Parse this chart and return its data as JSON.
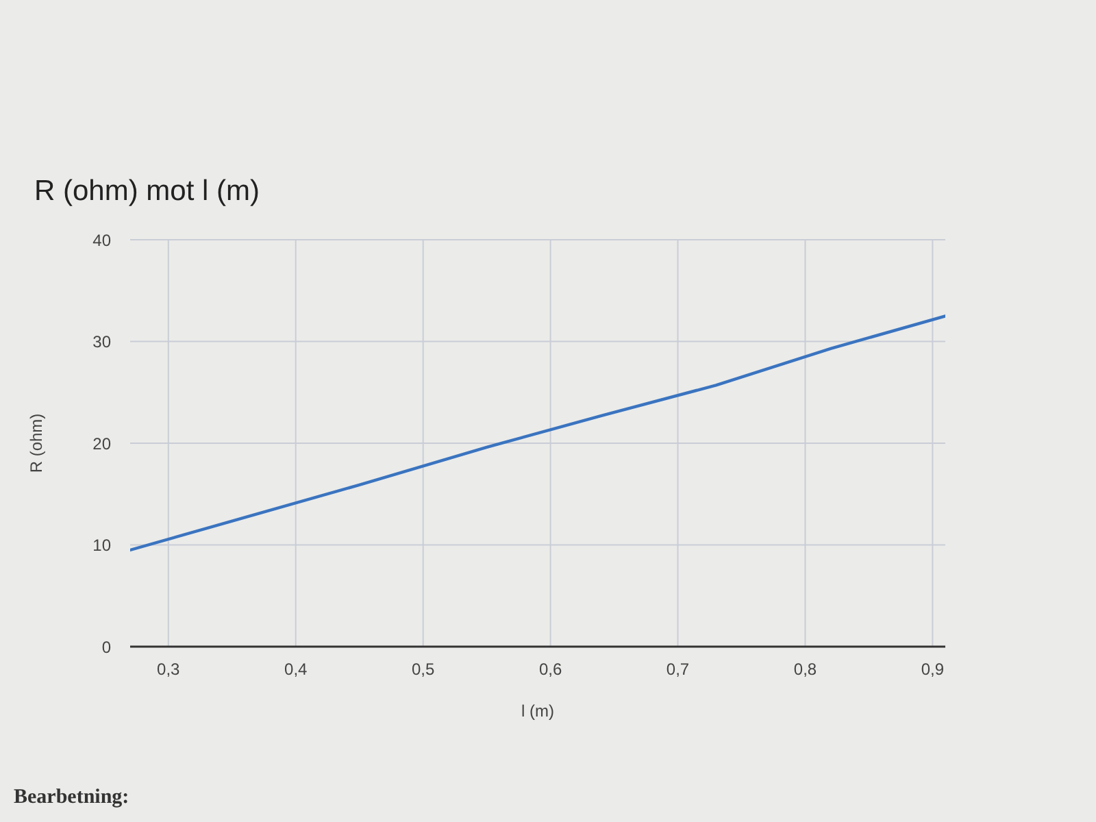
{
  "chart_data": {
    "type": "line",
    "title": "R (ohm) mot l (m)",
    "xlabel": "l (m)",
    "ylabel": "R (ohm)",
    "x": [
      0.27,
      0.36,
      0.45,
      0.55,
      0.64,
      0.73,
      0.82,
      0.91
    ],
    "series": [
      {
        "color": "#3a74c0",
        "values": [
          9.5,
          12.7,
          15.9,
          19.6,
          22.7,
          25.7,
          29.3,
          32.5
        ]
      }
    ],
    "xlim": [
      0.27,
      0.91
    ],
    "xticks": [
      {
        "value": 0.3,
        "label": "0,3"
      },
      {
        "value": 0.4,
        "label": "0,4"
      },
      {
        "value": 0.5,
        "label": "0,5"
      },
      {
        "value": 0.6,
        "label": "0,6"
      },
      {
        "value": 0.7,
        "label": "0,7"
      },
      {
        "value": 0.8,
        "label": "0,8"
      },
      {
        "value": 0.9,
        "label": "0,9"
      }
    ],
    "ylim": [
      0,
      40
    ],
    "yticks": [
      0,
      10,
      20,
      30,
      40
    ],
    "grid": true,
    "annotations": [
      "Bearbetning:"
    ]
  }
}
